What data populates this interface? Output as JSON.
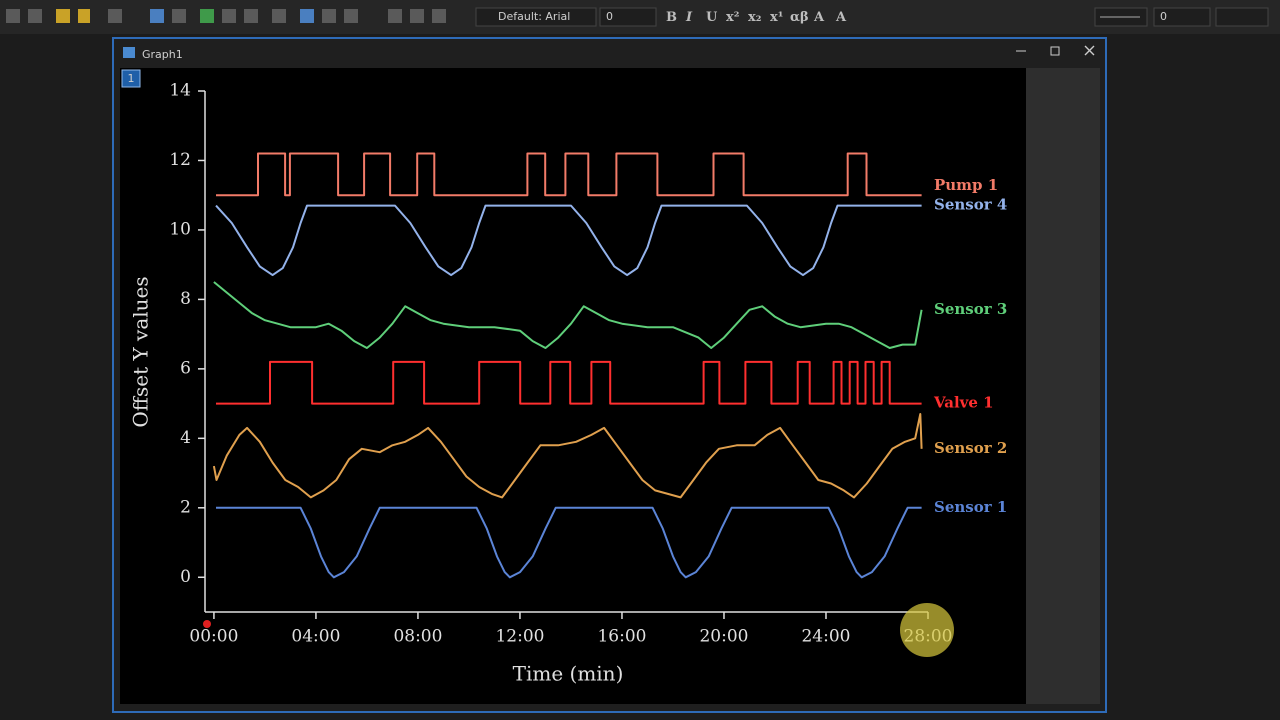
{
  "toolbar": {
    "font": "Default: Arial",
    "font_size": "0",
    "line_width": "0"
  },
  "window": {
    "title": "Graph1",
    "layer": "1"
  },
  "chart_data": {
    "type": "line",
    "xlabel": "Time (min)",
    "ylabel": "Offset Y values",
    "xlim": [
      -0.35,
      28
    ],
    "ylim": [
      -1,
      14
    ],
    "xticks": [
      {
        "value": 0,
        "label": "00:00"
      },
      {
        "value": 4,
        "label": "04:00"
      },
      {
        "value": 8,
        "label": "08:00"
      },
      {
        "value": 12,
        "label": "12:00"
      },
      {
        "value": 16,
        "label": "16:00"
      },
      {
        "value": 20,
        "label": "20:00"
      },
      {
        "value": 24,
        "label": "24:00"
      },
      {
        "value": 28,
        "label": "28:00"
      }
    ],
    "yticks": [
      0,
      2,
      4,
      6,
      8,
      10,
      12,
      14
    ],
    "series": [
      {
        "name": "Pump 1",
        "color": "#f27b68",
        "x": [
          0.08,
          1.73,
          1.73,
          2.79,
          2.79,
          2.98,
          2.98,
          4.87,
          4.87,
          5.89,
          5.89,
          6.91,
          6.91,
          7.97,
          7.97,
          8.64,
          8.64,
          12.29,
          12.29,
          12.99,
          12.99,
          13.78,
          13.78,
          14.68,
          14.68,
          15.78,
          15.78,
          17.39,
          17.39,
          19.59,
          19.59,
          20.77,
          20.77,
          24.85,
          24.85,
          25.59,
          25.59,
          27.75
        ],
        "values": [
          11,
          11,
          12.2,
          12.2,
          11,
          11,
          12.2,
          12.2,
          11,
          11,
          12.2,
          12.2,
          11,
          11,
          12.2,
          12.2,
          11,
          11,
          12.2,
          12.2,
          11,
          11,
          12.2,
          12.2,
          11,
          11,
          12.2,
          12.2,
          11,
          11,
          12.2,
          12.2,
          11,
          11,
          12.2,
          12.2,
          11,
          11
        ]
      },
      {
        "name": "Sensor 4",
        "color": "#93b2ea",
        "x": [
          0.08,
          0.7,
          1.3,
          1.8,
          2.3,
          2.7,
          3.1,
          3.4,
          3.65,
          7.1,
          7.7,
          8.3,
          8.8,
          9.3,
          9.7,
          10.1,
          10.4,
          10.65,
          14.0,
          14.6,
          15.2,
          15.7,
          16.2,
          16.6,
          17.0,
          17.3,
          17.55,
          20.9,
          21.5,
          22.1,
          22.6,
          23.1,
          23.5,
          23.9,
          24.2,
          24.45,
          27.75
        ],
        "values": [
          10.7,
          10.2,
          9.5,
          8.95,
          8.7,
          8.9,
          9.5,
          10.2,
          10.7,
          10.7,
          10.2,
          9.5,
          8.95,
          8.7,
          8.9,
          9.5,
          10.2,
          10.7,
          10.7,
          10.2,
          9.5,
          8.95,
          8.7,
          8.9,
          9.5,
          10.2,
          10.7,
          10.7,
          10.2,
          9.5,
          8.95,
          8.7,
          8.9,
          9.5,
          10.2,
          10.7,
          10.7
        ]
      },
      {
        "name": "Sensor 3",
        "color": "#5fcf7a",
        "x": [
          0,
          0.5,
          1,
          1.5,
          2,
          2.5,
          3,
          3.5,
          4,
          4.5,
          5,
          5.5,
          6,
          6.5,
          7,
          7.5,
          8,
          8.5,
          9,
          10,
          11,
          12,
          12.5,
          13,
          13.5,
          14,
          14.5,
          15,
          15.5,
          16,
          17,
          18,
          19,
          19.5,
          20,
          20.5,
          21,
          21.5,
          22,
          22.5,
          23,
          24,
          24.5,
          25,
          25.5,
          26,
          26.5,
          27,
          27.5,
          27.75
        ],
        "values": [
          8.5,
          8.2,
          7.9,
          7.6,
          7.4,
          7.3,
          7.2,
          7.2,
          7.2,
          7.3,
          7.1,
          6.8,
          6.6,
          6.9,
          7.3,
          7.8,
          7.6,
          7.4,
          7.3,
          7.2,
          7.2,
          7.1,
          6.8,
          6.6,
          6.9,
          7.3,
          7.8,
          7.6,
          7.4,
          7.3,
          7.2,
          7.2,
          6.9,
          6.6,
          6.9,
          7.3,
          7.7,
          7.8,
          7.5,
          7.3,
          7.2,
          7.3,
          7.3,
          7.2,
          7.0,
          6.8,
          6.6,
          6.7,
          6.7,
          7.7
        ]
      },
      {
        "name": "Valve 1",
        "color": "#ff2f2f",
        "x": [
          0.08,
          2.2,
          2.2,
          3.85,
          3.85,
          7.03,
          7.03,
          8.24,
          8.24,
          10.4,
          10.4,
          12.01,
          12.01,
          13.19,
          13.19,
          13.97,
          13.97,
          14.8,
          14.8,
          15.54,
          15.54,
          19.2,
          19.2,
          19.82,
          19.82,
          20.84,
          20.84,
          21.86,
          21.86,
          22.89,
          22.89,
          23.36,
          23.36,
          24.3,
          24.3,
          24.61,
          24.61,
          24.93,
          24.93,
          25.24,
          25.24,
          25.55,
          25.55,
          25.87,
          25.87,
          26.18,
          26.18,
          26.5,
          26.5,
          27.75
        ],
        "values": [
          5,
          5,
          6.2,
          6.2,
          5,
          5,
          6.2,
          6.2,
          5,
          5,
          6.2,
          6.2,
          5,
          5,
          6.2,
          6.2,
          5,
          5,
          6.2,
          6.2,
          5,
          5,
          6.2,
          6.2,
          5,
          5,
          6.2,
          6.2,
          5,
          5,
          6.2,
          6.2,
          5,
          5,
          6.2,
          6.2,
          5,
          5,
          6.2,
          6.2,
          5,
          5,
          6.2,
          6.2,
          5,
          5,
          6.2,
          6.2,
          5,
          5
        ]
      },
      {
        "name": "Sensor 2",
        "color": "#e0a04e",
        "x": [
          0,
          0.1,
          0.5,
          1,
          1.3,
          1.8,
          2.3,
          2.8,
          3.3,
          3.8,
          4.3,
          4.8,
          5.3,
          5.8,
          6.5,
          7.0,
          7.5,
          8.0,
          8.4,
          8.9,
          9.4,
          9.9,
          10.4,
          10.9,
          11.3,
          11.8,
          12.3,
          12.8,
          13.5,
          14.2,
          14.8,
          15.3,
          15.8,
          16.3,
          16.8,
          17.3,
          17.8,
          18.3,
          18.8,
          19.3,
          19.8,
          20.5,
          21.2,
          21.7,
          22.2,
          22.7,
          23.2,
          23.7,
          24.2,
          24.7,
          25.1,
          25.6,
          26.1,
          26.6,
          27.1,
          27.5,
          27.7,
          27.75
        ],
        "values": [
          3.2,
          2.8,
          3.5,
          4.1,
          4.3,
          3.9,
          3.3,
          2.8,
          2.6,
          2.3,
          2.5,
          2.8,
          3.4,
          3.7,
          3.6,
          3.8,
          3.9,
          4.1,
          4.3,
          3.9,
          3.4,
          2.9,
          2.6,
          2.4,
          2.3,
          2.8,
          3.3,
          3.8,
          3.8,
          3.9,
          4.1,
          4.3,
          3.8,
          3.3,
          2.8,
          2.5,
          2.4,
          2.3,
          2.8,
          3.3,
          3.7,
          3.8,
          3.8,
          4.1,
          4.3,
          3.8,
          3.3,
          2.8,
          2.7,
          2.5,
          2.3,
          2.7,
          3.2,
          3.7,
          3.9,
          4.0,
          4.7,
          3.7
        ]
      },
      {
        "name": "Sensor 1",
        "color": "#5b84d6",
        "x": [
          0.08,
          3.4,
          3.8,
          4.2,
          4.5,
          4.7,
          5.1,
          5.6,
          6.1,
          6.5,
          10.3,
          10.7,
          11.1,
          11.4,
          11.6,
          12.0,
          12.5,
          13.0,
          13.4,
          17.2,
          17.6,
          18.0,
          18.3,
          18.5,
          18.9,
          19.4,
          19.9,
          20.3,
          24.1,
          24.5,
          24.9,
          25.2,
          25.4,
          25.8,
          26.3,
          26.8,
          27.2,
          27.75
        ],
        "values": [
          2,
          2,
          1.4,
          0.6,
          0.15,
          0,
          0.15,
          0.6,
          1.4,
          2,
          2,
          1.4,
          0.6,
          0.15,
          0,
          0.15,
          0.6,
          1.4,
          2,
          2,
          1.4,
          0.6,
          0.15,
          0,
          0.15,
          0.6,
          1.4,
          2,
          2,
          1.4,
          0.6,
          0.15,
          0,
          0.15,
          0.6,
          1.4,
          2,
          2
        ]
      }
    ]
  }
}
